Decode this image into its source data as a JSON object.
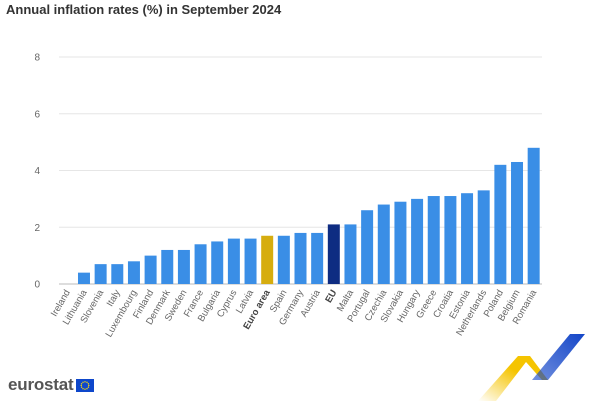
{
  "title": "Annual inflation rates (%) in September 2024",
  "logo": {
    "text": "eurostat",
    "icon": "eu-flag-icon"
  },
  "colors": {
    "default_bar": "#3a8ee6",
    "euro_area_bar": "#d6ad0f",
    "eu_bar": "#0e2c82",
    "gridline": "#e6e6e6",
    "corner_yellow": "#f5c400",
    "corner_blue": "#1446c8"
  },
  "chart_data": {
    "type": "bar",
    "title": "Annual inflation rates (%) in September 2024",
    "xlabel": "",
    "ylabel": "",
    "ylim": [
      0,
      8
    ],
    "yticks": [
      0,
      2,
      4,
      6,
      8
    ],
    "grid": true,
    "legend": "none",
    "categories": [
      "Ireland",
      "Lithuania",
      "Slovenia",
      "Italy",
      "Luxembourg",
      "Finland",
      "Denmark",
      "Sweden",
      "France",
      "Bulgaria",
      "Cyprus",
      "Latvia",
      "Euro area",
      "Spain",
      "Germany",
      "Austria",
      "EU",
      "Malta",
      "Portugal",
      "Czechia",
      "Slovakia",
      "Hungary",
      "Greece",
      "Croatia",
      "Estonia",
      "Netherlands",
      "Poland",
      "Belgium",
      "Romania"
    ],
    "values": [
      0,
      0.4,
      0.7,
      0.7,
      0.8,
      1.0,
      1.2,
      1.2,
      1.4,
      1.5,
      1.6,
      1.6,
      1.7,
      1.7,
      1.8,
      1.8,
      2.1,
      2.1,
      2.6,
      2.8,
      2.9,
      3.0,
      3.1,
      3.1,
      3.2,
      3.3,
      4.2,
      4.3,
      4.8
    ],
    "highlighted": {
      "Euro area": "euro_area_bar",
      "EU": "eu_bar"
    },
    "bold_labels": [
      "Euro area",
      "EU"
    ]
  }
}
